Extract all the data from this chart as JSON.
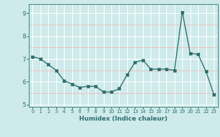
{
  "x": [
    0,
    1,
    2,
    3,
    4,
    5,
    6,
    7,
    8,
    9,
    10,
    11,
    12,
    13,
    14,
    15,
    16,
    17,
    18,
    19,
    20,
    21,
    22,
    23
  ],
  "y": [
    7.1,
    7.0,
    6.75,
    6.5,
    6.05,
    5.9,
    5.75,
    5.8,
    5.8,
    5.55,
    5.55,
    5.7,
    6.3,
    6.85,
    6.95,
    6.55,
    6.55,
    6.55,
    6.5,
    9.05,
    7.25,
    7.2,
    6.45,
    5.45
  ],
  "ylim": [
    4.9,
    9.4
  ],
  "xlim": [
    -0.5,
    23.5
  ],
  "yticks": [
    5,
    6,
    7,
    8,
    9
  ],
  "xticks": [
    0,
    1,
    2,
    3,
    4,
    5,
    6,
    7,
    8,
    9,
    10,
    11,
    12,
    13,
    14,
    15,
    16,
    17,
    18,
    19,
    20,
    21,
    22,
    23
  ],
  "xlabel": "Humidex (Indice chaleur)",
  "line_color": "#2e6e6e",
  "marker_color": "#2e6e6e",
  "bg_color": "#ceeaea",
  "grid_color_major": "#ffffff",
  "grid_color_minor": "#f5b8b8",
  "tick_color": "#2e6e6e",
  "label_color": "#2e6e6e"
}
